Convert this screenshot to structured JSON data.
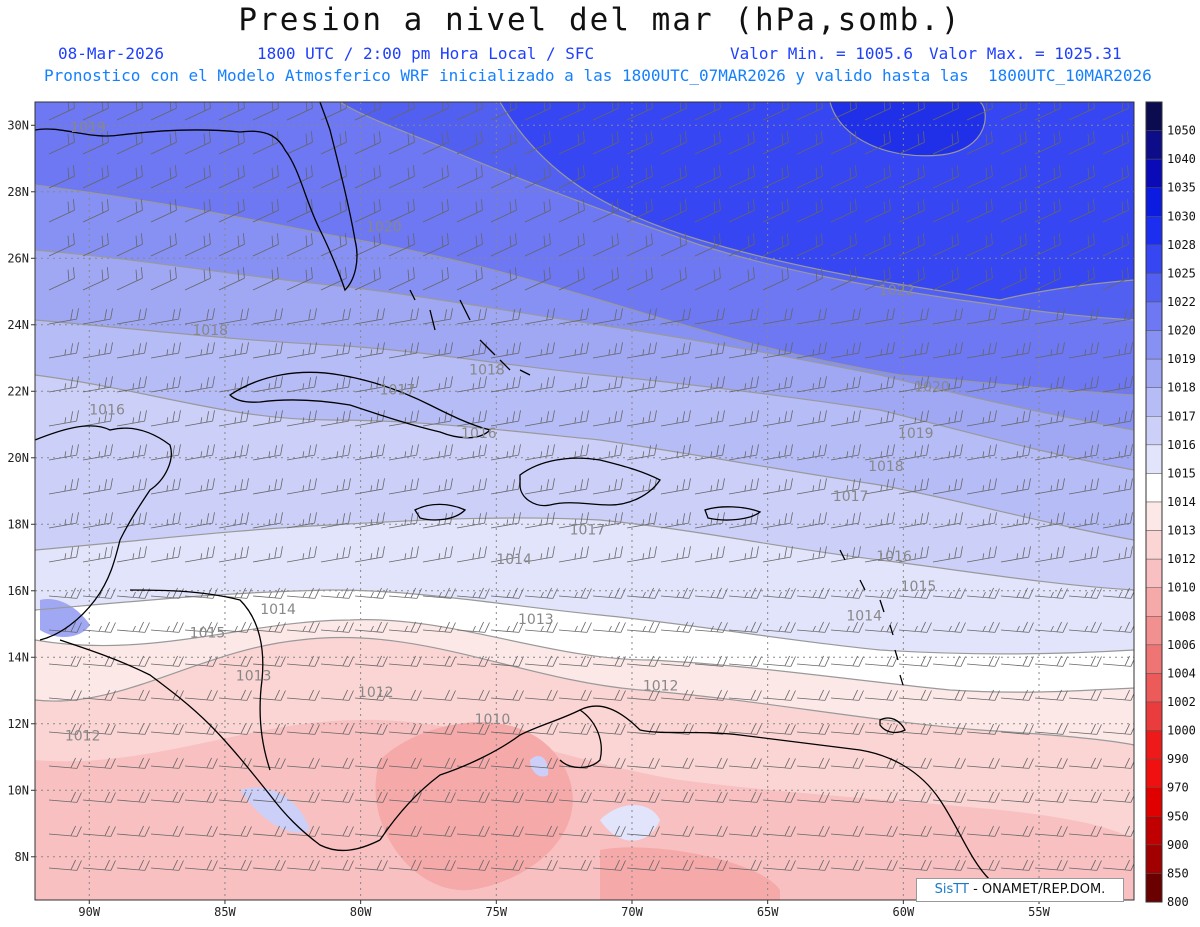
{
  "title": "Presion a nivel del mar (hPa,somb.)",
  "header": {
    "date": "08-Mar-2026",
    "time": "1800 UTC / 2:00 pm Hora Local / SFC",
    "min": "Valor Min. = 1005.6",
    "max": "Valor Max. = 1025.31",
    "model_line": "Pronostico con el Modelo Atmosferico WRF inicializado a las 1800UTC_07MAR2026 y valido hasta las  1800UTC_10MAR2026"
  },
  "map_data": {
    "lat_ticks": [
      "30N",
      "28N",
      "26N",
      "24N",
      "22N",
      "20N",
      "18N",
      "16N",
      "14N",
      "12N",
      "10N",
      "8N"
    ],
    "lon_ticks": [
      "90W",
      "85W",
      "80W",
      "75W",
      "70W",
      "65W",
      "60W",
      "55W"
    ],
    "lat_range": [
      6.7,
      30.7
    ],
    "lon_range": [
      -92,
      -51.5
    ]
  },
  "colorbar": {
    "levels": [
      "1050",
      "1040",
      "1035",
      "1030",
      "1028",
      "1025",
      "1022",
      "1020",
      "1019",
      "1018",
      "1017",
      "1016",
      "1015",
      "1014",
      "1013",
      "1012",
      "1010",
      "1008",
      "1006",
      "1004",
      "1002",
      "1000",
      "990",
      "970",
      "950",
      "900",
      "850",
      "800"
    ],
    "colors": [
      "#0b0b50",
      "#0d0d8a",
      "#0a0ab8",
      "#0b1be0",
      "#1c2ff0",
      "#3646f2",
      "#5260f2",
      "#6d78f2",
      "#8791f3",
      "#a0a8f4",
      "#b6bcf6",
      "#ccd0f8",
      "#e2e4fb",
      "#ffffff",
      "#fde8e8",
      "#fbd4d4",
      "#f8c0c0",
      "#f5a9a9",
      "#f29090",
      "#ef7575",
      "#ec5a5a",
      "#ea3c3c",
      "#ee1a1a",
      "#f01010",
      "#e00000",
      "#c00000",
      "#a00000",
      "#6a0000"
    ]
  },
  "isobar_labels": [
    {
      "text": "1019",
      "lon": -90.7,
      "lat": 29.8
    },
    {
      "text": "1020",
      "lon": -79.8,
      "lat": 26.8
    },
    {
      "text": "1022",
      "lon": -60.9,
      "lat": 24.9
    },
    {
      "text": "1018",
      "lon": -86.2,
      "lat": 23.7
    },
    {
      "text": "1018",
      "lon": -76.0,
      "lat": 22.5
    },
    {
      "text": "1017",
      "lon": -79.3,
      "lat": 21.9
    },
    {
      "text": "1016",
      "lon": -90.0,
      "lat": 21.3
    },
    {
      "text": "1016",
      "lon": -76.3,
      "lat": 20.6
    },
    {
      "text": "1020",
      "lon": -59.6,
      "lat": 22.0
    },
    {
      "text": "1019",
      "lon": -60.2,
      "lat": 20.6
    },
    {
      "text": "1018",
      "lon": -61.3,
      "lat": 19.6
    },
    {
      "text": "1017",
      "lon": -62.6,
      "lat": 18.7
    },
    {
      "text": "1017",
      "lon": -72.3,
      "lat": 17.7
    },
    {
      "text": "1016",
      "lon": -61.0,
      "lat": 16.9
    },
    {
      "text": "1015",
      "lon": -60.1,
      "lat": 16.0
    },
    {
      "text": "1014",
      "lon": -75.0,
      "lat": 16.8
    },
    {
      "text": "1014",
      "lon": -83.7,
      "lat": 15.3
    },
    {
      "text": "1014",
      "lon": -62.1,
      "lat": 15.1
    },
    {
      "text": "1015",
      "lon": -86.3,
      "lat": 14.6
    },
    {
      "text": "1013",
      "lon": -74.2,
      "lat": 15.0
    },
    {
      "text": "1013",
      "lon": -84.6,
      "lat": 13.3
    },
    {
      "text": "1012",
      "lon": -80.1,
      "lat": 12.8
    },
    {
      "text": "1012",
      "lon": -69.6,
      "lat": 13.0
    },
    {
      "text": "1010",
      "lon": -75.8,
      "lat": 12.0
    },
    {
      "text": "1012",
      "lon": -90.9,
      "lat": 11.5
    }
  ],
  "credit": {
    "logo": "SisTT",
    "text": " - ONAMET/REP.DOM."
  }
}
